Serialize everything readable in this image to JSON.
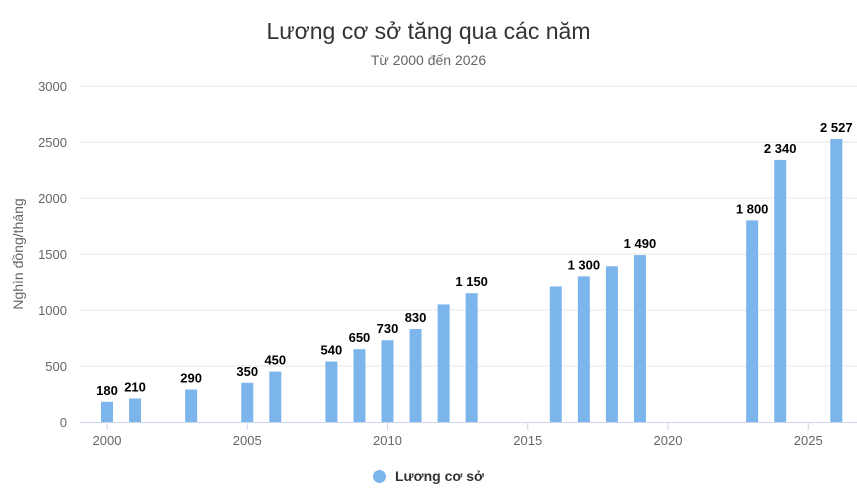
{
  "title": "Lương cơ sở tăng qua các năm",
  "subtitle": "Từ 2000 đến 2026",
  "legend": {
    "label": "Lương cơ sở",
    "color": "#7cb5ec"
  },
  "chart_data": {
    "type": "bar",
    "title": "Lương cơ sở tăng qua các năm",
    "subtitle": "Từ 2000 đến 2026",
    "xlabel": "",
    "ylabel": "Nghìn đồng/tháng",
    "xlim": [
      2000,
      2026
    ],
    "ylim": [
      0,
      3000
    ],
    "x_ticks": [
      2000,
      2005,
      2010,
      2015,
      2020,
      2025
    ],
    "y_ticks": [
      0,
      500,
      1000,
      1500,
      2000,
      2500,
      3000
    ],
    "grid": true,
    "legend_position": "bottom",
    "series": [
      {
        "name": "Lương cơ sở",
        "color": "#7cb5ec",
        "points": [
          {
            "x": 2000,
            "y": 180,
            "label": "180"
          },
          {
            "x": 2001,
            "y": 210,
            "label": "210"
          },
          {
            "x": 2003,
            "y": 290,
            "label": "290"
          },
          {
            "x": 2005,
            "y": 350,
            "label": "350"
          },
          {
            "x": 2006,
            "y": 450,
            "label": "450"
          },
          {
            "x": 2008,
            "y": 540,
            "label": "540"
          },
          {
            "x": 2009,
            "y": 650,
            "label": "650"
          },
          {
            "x": 2010,
            "y": 730,
            "label": "730"
          },
          {
            "x": 2011,
            "y": 830,
            "label": "830"
          },
          {
            "x": 2012,
            "y": 1050,
            "label": ""
          },
          {
            "x": 2013,
            "y": 1150,
            "label": "1 150"
          },
          {
            "x": 2016,
            "y": 1210,
            "label": ""
          },
          {
            "x": 2017,
            "y": 1300,
            "label": "1 300"
          },
          {
            "x": 2018,
            "y": 1390,
            "label": ""
          },
          {
            "x": 2019,
            "y": 1490,
            "label": "1 490"
          },
          {
            "x": 2023,
            "y": 1800,
            "label": "1 800"
          },
          {
            "x": 2024,
            "y": 2340,
            "label": "2 340"
          },
          {
            "x": 2026,
            "y": 2527,
            "label": "2 527"
          }
        ]
      }
    ]
  }
}
